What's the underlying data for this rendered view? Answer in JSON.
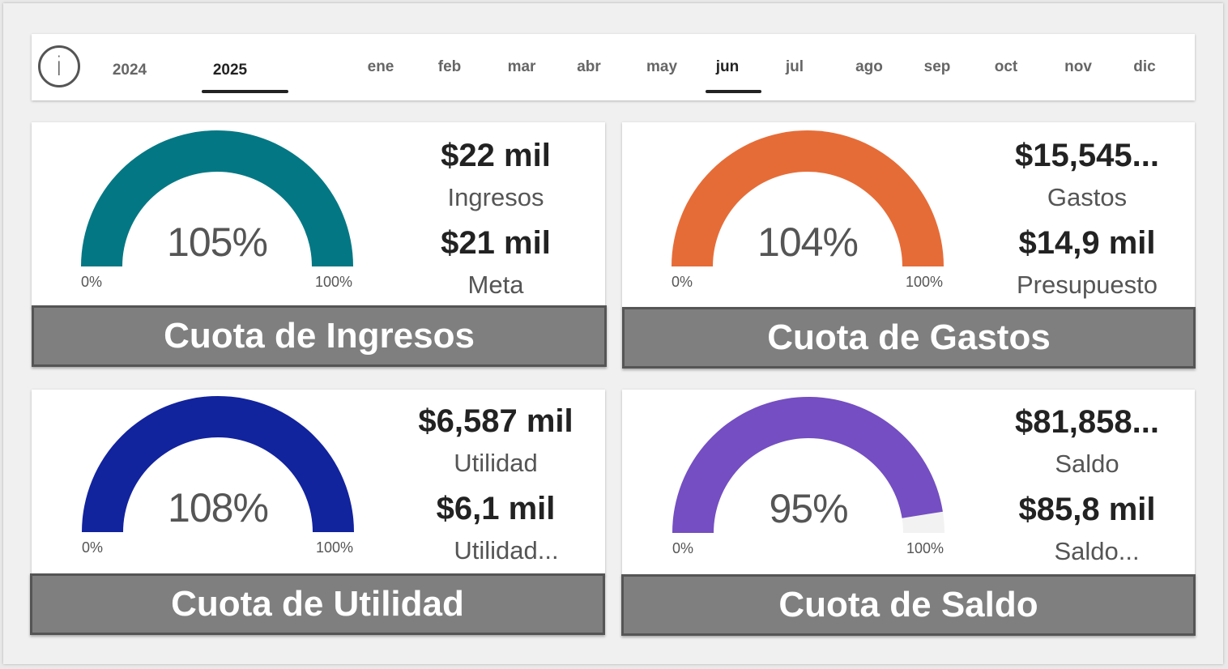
{
  "slicer": {
    "years": [
      "2024",
      "2025"
    ],
    "selected_year": "2025",
    "months": [
      "ene",
      "feb",
      "mar",
      "abr",
      "may",
      "jun",
      "jul",
      "ago",
      "sep",
      "oct",
      "nov",
      "dic"
    ],
    "selected_month": "jun"
  },
  "cards": {
    "ingresos": {
      "title": "Cuota de Ingresos",
      "percent": "105%",
      "fill_fraction": 1.0,
      "axis_min": "0%",
      "axis_max": "100%",
      "value": "$22 mil",
      "value_label": "Ingresos",
      "target": "$21 mil",
      "target_label": "Meta",
      "color": "#037884"
    },
    "gastos": {
      "title": "Cuota de Gastos",
      "percent": "104%",
      "fill_fraction": 1.0,
      "axis_min": "0%",
      "axis_max": "100%",
      "value": "$15,545...",
      "value_label": "Gastos",
      "target": "$14,9 mil",
      "target_label": "Presupuesto",
      "color": "#E66C37"
    },
    "utilidad": {
      "title": "Cuota de Utilidad",
      "percent": "108%",
      "fill_fraction": 1.0,
      "axis_min": "0%",
      "axis_max": "100%",
      "value": "$6,587 mil",
      "value_label": "Utilidad",
      "target": "$6,1 mil",
      "target_label": "Utilidad...",
      "color": "#12239E"
    },
    "saldo": {
      "title": "Cuota de Saldo",
      "percent": "95%",
      "fill_fraction": 0.95,
      "axis_min": "0%",
      "axis_max": "100%",
      "value": "$81,858...",
      "value_label": "Saldo",
      "target": "$85,8 mil",
      "target_label": "Saldo...",
      "color": "#744EC2"
    }
  },
  "colors": {
    "gauge_track": "#f2f2f2",
    "title_bar": "#7f7f7f"
  }
}
